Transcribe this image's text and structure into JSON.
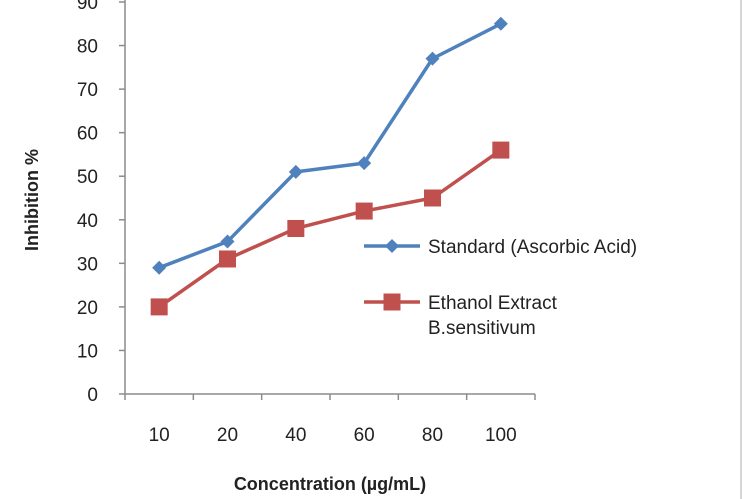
{
  "chart_data": {
    "type": "line",
    "xlabel": "Concentration (µg/mL)",
    "ylabel": "Inhibition %",
    "categories": [
      "10",
      "20",
      "40",
      "60",
      "80",
      "100"
    ],
    "ylim": [
      0,
      90
    ],
    "yticks": [
      "0",
      "10",
      "20",
      "30",
      "40",
      "50",
      "60",
      "70",
      "80",
      "90"
    ],
    "grid": false,
    "legend_position": "right",
    "series": [
      {
        "name": "Standard (Ascorbic Acid)",
        "values": [
          29,
          35,
          51,
          53,
          77,
          85
        ],
        "color": "#4f81bd",
        "marker": "diamond"
      },
      {
        "name": "Ethanol Extract B.sensitivum",
        "name_lines": [
          "Ethanol Extract",
          "B.sensitivum"
        ],
        "values": [
          20,
          31,
          38,
          42,
          45,
          56
        ],
        "color": "#c0504d",
        "marker": "square"
      }
    ]
  }
}
